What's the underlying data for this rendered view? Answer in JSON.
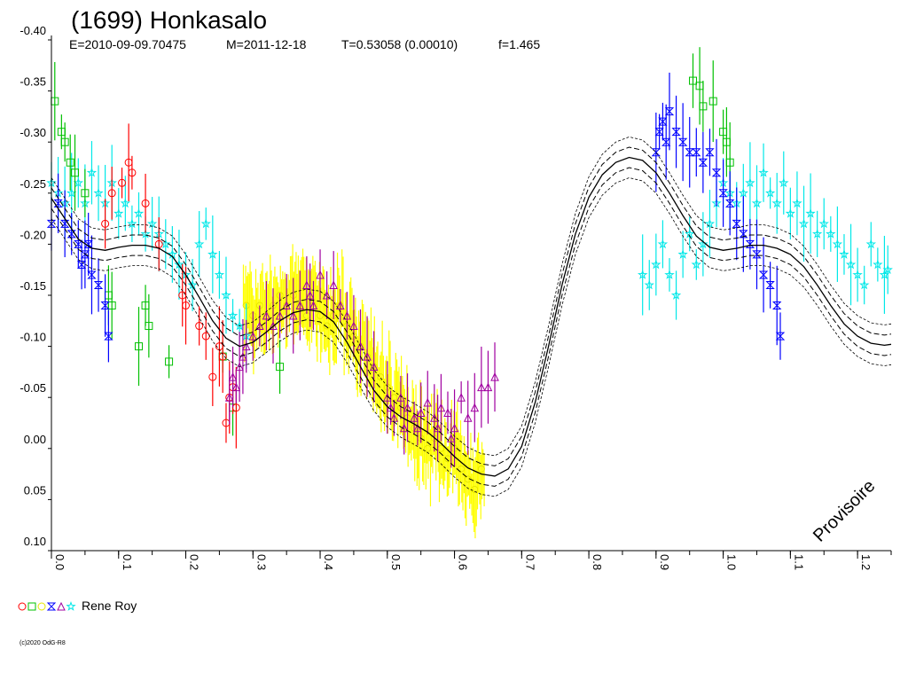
{
  "chart_data": {
    "type": "scatter",
    "title": "(1699) Honkasalo",
    "info": {
      "epoch": "E=2010-09-09.70475",
      "median": "M=2011-12-18",
      "period": "T=0.53058 (0.00010)",
      "order": "f=1.465"
    },
    "xlim": [
      0.0,
      1.25
    ],
    "ylim": [
      -0.4,
      0.1
    ],
    "y_inverted": true,
    "y_ticks": [
      "-0.40",
      "-0.35",
      "-0.30",
      "-0.25",
      "-0.20",
      "-0.15",
      "-0.10",
      "-0.05",
      "0.00",
      "0.05",
      "0.10"
    ],
    "x_ticks": [
      "0.0",
      "0.1",
      "0.2",
      "0.3",
      "0.4",
      "0.5",
      "0.6",
      "0.7",
      "0.8",
      "0.9",
      "1.0",
      "1.1",
      "1.2"
    ],
    "grid": false,
    "legend_position": "bottom-left",
    "legend_label": "Rene Roy",
    "watermark": "Provisoire",
    "copyright": "(c)2020 OdG-R8",
    "series": [
      {
        "marker": "circle",
        "color": "#ff0000",
        "points": [
          [
            0.105,
            -0.26
          ],
          [
            0.115,
            -0.28
          ],
          [
            0.12,
            -0.27
          ],
          [
            0.14,
            -0.24
          ],
          [
            0.08,
            -0.22
          ],
          [
            0.16,
            -0.2
          ],
          [
            0.195,
            -0.15
          ],
          [
            0.22,
            -0.12
          ],
          [
            0.23,
            -0.11
          ],
          [
            0.24,
            -0.07
          ],
          [
            0.25,
            -0.1
          ],
          [
            0.255,
            -0.09
          ],
          [
            0.26,
            -0.025
          ],
          [
            0.275,
            -0.04
          ],
          [
            0.265,
            -0.05
          ],
          [
            0.27,
            -0.06
          ],
          [
            0.2,
            -0.14
          ],
          [
            0.09,
            -0.25
          ]
        ]
      },
      {
        "marker": "square",
        "color": "#00c000",
        "points": [
          [
            0.005,
            -0.34
          ],
          [
            0.015,
            -0.31
          ],
          [
            0.02,
            -0.3
          ],
          [
            0.028,
            -0.28
          ],
          [
            0.035,
            -0.27
          ],
          [
            0.05,
            -0.25
          ],
          [
            0.085,
            -0.15
          ],
          [
            0.09,
            -0.14
          ],
          [
            0.13,
            -0.1
          ],
          [
            0.14,
            -0.14
          ],
          [
            0.145,
            -0.12
          ],
          [
            0.175,
            -0.085
          ],
          [
            0.255,
            -0.09
          ],
          [
            0.27,
            -0.04
          ],
          [
            0.34,
            -0.08
          ],
          [
            0.955,
            -0.36
          ],
          [
            0.965,
            -0.355
          ],
          [
            0.97,
            -0.335
          ],
          [
            0.985,
            -0.34
          ],
          [
            1.0,
            -0.31
          ],
          [
            1.005,
            -0.3
          ],
          [
            1.01,
            -0.28
          ]
        ]
      },
      {
        "marker": "circle",
        "color": "#ffff00",
        "points": []
      },
      {
        "marker": "bowtie",
        "color": "#0000ff",
        "points": [
          [
            0.0,
            -0.22
          ],
          [
            0.01,
            -0.24
          ],
          [
            0.02,
            -0.22
          ],
          [
            0.03,
            -0.21
          ],
          [
            0.04,
            -0.2
          ],
          [
            0.05,
            -0.19
          ],
          [
            0.06,
            -0.17
          ],
          [
            0.07,
            -0.16
          ],
          [
            0.08,
            -0.14
          ],
          [
            0.085,
            -0.11
          ],
          [
            0.045,
            -0.18
          ],
          [
            0.055,
            -0.2
          ],
          [
            0.9,
            -0.29
          ],
          [
            0.905,
            -0.31
          ],
          [
            0.91,
            -0.32
          ],
          [
            0.915,
            -0.3
          ],
          [
            0.92,
            -0.33
          ],
          [
            0.93,
            -0.31
          ],
          [
            0.94,
            -0.3
          ],
          [
            0.95,
            -0.29
          ],
          [
            0.96,
            -0.29
          ],
          [
            0.97,
            -0.28
          ],
          [
            0.98,
            -0.29
          ],
          [
            0.99,
            -0.27
          ],
          [
            1.0,
            -0.25
          ],
          [
            1.01,
            -0.24
          ],
          [
            1.02,
            -0.22
          ],
          [
            1.03,
            -0.21
          ],
          [
            1.04,
            -0.2
          ],
          [
            1.05,
            -0.19
          ],
          [
            1.06,
            -0.17
          ],
          [
            1.07,
            -0.16
          ],
          [
            1.08,
            -0.14
          ],
          [
            1.085,
            -0.11
          ]
        ]
      },
      {
        "marker": "triangle",
        "color": "#a000a0",
        "points": [
          [
            0.265,
            -0.05
          ],
          [
            0.27,
            -0.07
          ],
          [
            0.275,
            -0.06
          ],
          [
            0.28,
            -0.08
          ],
          [
            0.285,
            -0.09
          ],
          [
            0.29,
            -0.1
          ],
          [
            0.3,
            -0.11
          ],
          [
            0.31,
            -0.12
          ],
          [
            0.32,
            -0.13
          ],
          [
            0.33,
            -0.12
          ],
          [
            0.34,
            -0.13
          ],
          [
            0.35,
            -0.14
          ],
          [
            0.36,
            -0.13
          ],
          [
            0.37,
            -0.14
          ],
          [
            0.38,
            -0.16
          ],
          [
            0.385,
            -0.15
          ],
          [
            0.39,
            -0.14
          ],
          [
            0.4,
            -0.17
          ],
          [
            0.41,
            -0.15
          ],
          [
            0.42,
            -0.16
          ],
          [
            0.43,
            -0.14
          ],
          [
            0.44,
            -0.13
          ],
          [
            0.45,
            -0.12
          ],
          [
            0.46,
            -0.1
          ],
          [
            0.47,
            -0.09
          ],
          [
            0.48,
            -0.08
          ],
          [
            0.5,
            -0.05
          ],
          [
            0.505,
            -0.04
          ],
          [
            0.51,
            -0.03
          ],
          [
            0.52,
            -0.05
          ],
          [
            0.53,
            -0.04
          ],
          [
            0.54,
            -0.03
          ],
          [
            0.55,
            -0.035
          ],
          [
            0.56,
            -0.045
          ],
          [
            0.57,
            -0.03
          ],
          [
            0.58,
            -0.04
          ],
          [
            0.59,
            -0.035
          ],
          [
            0.6,
            -0.02
          ],
          [
            0.61,
            -0.05
          ],
          [
            0.62,
            -0.03
          ],
          [
            0.63,
            -0.04
          ],
          [
            0.64,
            -0.06
          ],
          [
            0.65,
            -0.06
          ],
          [
            0.66,
            -0.07
          ],
          [
            0.525,
            -0.02
          ],
          [
            0.545,
            -0.02
          ],
          [
            0.575,
            -0.02
          ],
          [
            0.595,
            -0.01
          ]
        ]
      },
      {
        "marker": "star",
        "color": "#00e8e8",
        "points": [
          [
            0.0,
            -0.26
          ],
          [
            0.01,
            -0.25
          ],
          [
            0.02,
            -0.24
          ],
          [
            0.03,
            -0.25
          ],
          [
            0.04,
            -0.26
          ],
          [
            0.05,
            -0.24
          ],
          [
            0.06,
            -0.27
          ],
          [
            0.07,
            -0.25
          ],
          [
            0.08,
            -0.24
          ],
          [
            0.09,
            -0.26
          ],
          [
            0.1,
            -0.23
          ],
          [
            0.11,
            -0.24
          ],
          [
            0.12,
            -0.22
          ],
          [
            0.13,
            -0.23
          ],
          [
            0.14,
            -0.21
          ],
          [
            0.15,
            -0.22
          ],
          [
            0.16,
            -0.21
          ],
          [
            0.17,
            -0.2
          ],
          [
            0.18,
            -0.19
          ],
          [
            0.19,
            -0.18
          ],
          [
            0.2,
            -0.17
          ],
          [
            0.21,
            -0.16
          ],
          [
            0.22,
            -0.2
          ],
          [
            0.23,
            -0.22
          ],
          [
            0.24,
            -0.19
          ],
          [
            0.25,
            -0.17
          ],
          [
            0.26,
            -0.15
          ],
          [
            0.27,
            -0.13
          ],
          [
            0.28,
            -0.12
          ],
          [
            0.29,
            -0.11
          ],
          [
            0.88,
            -0.17
          ],
          [
            0.89,
            -0.16
          ],
          [
            0.9,
            -0.18
          ],
          [
            0.91,
            -0.2
          ],
          [
            0.92,
            -0.17
          ],
          [
            0.93,
            -0.15
          ],
          [
            0.94,
            -0.19
          ],
          [
            0.95,
            -0.21
          ],
          [
            0.96,
            -0.18
          ],
          [
            0.97,
            -0.2
          ],
          [
            0.98,
            -0.22
          ],
          [
            0.99,
            -0.24
          ],
          [
            1.0,
            -0.26
          ],
          [
            1.01,
            -0.25
          ],
          [
            1.02,
            -0.24
          ],
          [
            1.03,
            -0.25
          ],
          [
            1.04,
            -0.26
          ],
          [
            1.05,
            -0.24
          ],
          [
            1.06,
            -0.27
          ],
          [
            1.07,
            -0.25
          ],
          [
            1.08,
            -0.24
          ],
          [
            1.09,
            -0.26
          ],
          [
            1.1,
            -0.23
          ],
          [
            1.11,
            -0.24
          ],
          [
            1.12,
            -0.22
          ],
          [
            1.13,
            -0.23
          ],
          [
            1.14,
            -0.21
          ],
          [
            1.15,
            -0.22
          ],
          [
            1.16,
            -0.21
          ],
          [
            1.17,
            -0.2
          ],
          [
            1.18,
            -0.19
          ],
          [
            1.19,
            -0.18
          ],
          [
            1.2,
            -0.17
          ],
          [
            1.21,
            -0.16
          ],
          [
            1.22,
            -0.2
          ],
          [
            1.23,
            -0.18
          ],
          [
            1.24,
            -0.17
          ],
          [
            1.245,
            -0.175
          ]
        ]
      }
    ],
    "yellow_band": [
      [
        0.29,
        -0.14
      ],
      [
        0.3,
        -0.13
      ],
      [
        0.31,
        -0.14
      ],
      [
        0.32,
        -0.13
      ],
      [
        0.33,
        -0.14
      ],
      [
        0.34,
        -0.15
      ],
      [
        0.35,
        -0.14
      ],
      [
        0.36,
        -0.15
      ],
      [
        0.37,
        -0.14
      ],
      [
        0.38,
        -0.13
      ],
      [
        0.39,
        -0.14
      ],
      [
        0.4,
        -0.13
      ],
      [
        0.41,
        -0.12
      ],
      [
        0.42,
        -0.13
      ],
      [
        0.43,
        -0.14
      ],
      [
        0.44,
        -0.12
      ],
      [
        0.45,
        -0.11
      ],
      [
        0.46,
        -0.1
      ],
      [
        0.47,
        -0.09
      ],
      [
        0.48,
        -0.08
      ],
      [
        0.49,
        -0.07
      ],
      [
        0.5,
        -0.06
      ],
      [
        0.51,
        -0.05
      ],
      [
        0.52,
        -0.04
      ],
      [
        0.53,
        -0.03
      ],
      [
        0.54,
        -0.02
      ],
      [
        0.55,
        -0.01
      ],
      [
        0.56,
        0.0
      ],
      [
        0.57,
        -0.01
      ],
      [
        0.58,
        0.0
      ],
      [
        0.59,
        0.01
      ],
      [
        0.6,
        0.0
      ],
      [
        0.61,
        0.02
      ],
      [
        0.62,
        0.03
      ],
      [
        0.63,
        0.04
      ],
      [
        0.64,
        0.02
      ]
    ],
    "fit_curve": [
      [
        0.0,
        -0.245
      ],
      [
        0.02,
        -0.225
      ],
      [
        0.04,
        -0.205
      ],
      [
        0.06,
        -0.196
      ],
      [
        0.08,
        -0.194
      ],
      [
        0.1,
        -0.197
      ],
      [
        0.12,
        -0.199
      ],
      [
        0.14,
        -0.199
      ],
      [
        0.16,
        -0.196
      ],
      [
        0.18,
        -0.188
      ],
      [
        0.2,
        -0.17
      ],
      [
        0.22,
        -0.148
      ],
      [
        0.24,
        -0.125
      ],
      [
        0.26,
        -0.108
      ],
      [
        0.28,
        -0.1
      ],
      [
        0.3,
        -0.104
      ],
      [
        0.32,
        -0.114
      ],
      [
        0.34,
        -0.125
      ],
      [
        0.36,
        -0.133
      ],
      [
        0.38,
        -0.136
      ],
      [
        0.4,
        -0.134
      ],
      [
        0.42,
        -0.124
      ],
      [
        0.44,
        -0.104
      ],
      [
        0.46,
        -0.08
      ],
      [
        0.48,
        -0.057
      ],
      [
        0.5,
        -0.041
      ],
      [
        0.52,
        -0.031
      ],
      [
        0.54,
        -0.024
      ],
      [
        0.56,
        -0.016
      ],
      [
        0.58,
        -0.005
      ],
      [
        0.6,
        0.008
      ],
      [
        0.62,
        0.019
      ],
      [
        0.64,
        0.025
      ],
      [
        0.66,
        0.027
      ],
      [
        0.68,
        0.02
      ],
      [
        0.7,
        -0.002
      ],
      [
        0.72,
        -0.045
      ],
      [
        0.74,
        -0.1
      ],
      [
        0.76,
        -0.16
      ],
      [
        0.78,
        -0.21
      ],
      [
        0.8,
        -0.246
      ],
      [
        0.82,
        -0.268
      ],
      [
        0.84,
        -0.28
      ],
      [
        0.86,
        -0.285
      ],
      [
        0.88,
        -0.282
      ],
      [
        0.9,
        -0.27
      ],
      [
        0.92,
        -0.25
      ],
      [
        0.94,
        -0.228
      ],
      [
        0.96,
        -0.208
      ],
      [
        0.98,
        -0.197
      ],
      [
        1.0,
        -0.194
      ],
      [
        1.02,
        -0.196
      ],
      [
        1.04,
        -0.199
      ],
      [
        1.06,
        -0.199
      ],
      [
        1.08,
        -0.196
      ],
      [
        1.1,
        -0.19
      ],
      [
        1.12,
        -0.178
      ],
      [
        1.14,
        -0.16
      ],
      [
        1.16,
        -0.14
      ],
      [
        1.18,
        -0.122
      ],
      [
        1.2,
        -0.11
      ],
      [
        1.22,
        -0.103
      ],
      [
        1.24,
        -0.101
      ],
      [
        1.25,
        -0.102
      ]
    ],
    "fit_envelope_offset": 0.01
  }
}
